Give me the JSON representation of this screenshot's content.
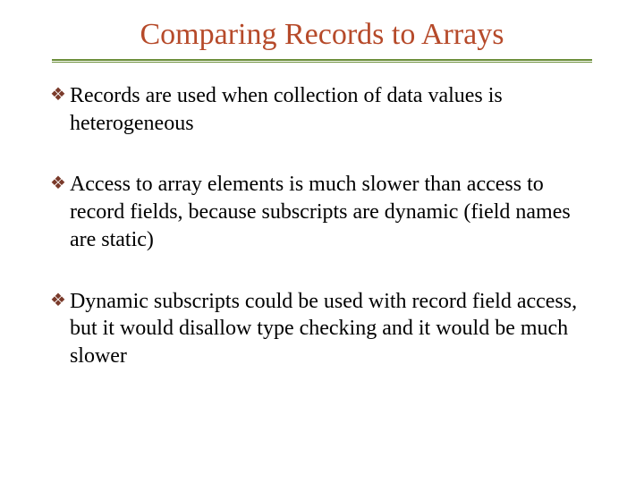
{
  "title": {
    "text": "Comparing Records to Arrays",
    "color": "#b64a2a",
    "fontsize": 34
  },
  "rule": {
    "color": "#6b8e3a"
  },
  "bullet": {
    "glyph": "❖",
    "color": "#7a3a2a"
  },
  "body": {
    "fontsize": 24,
    "color": "#000000"
  },
  "items": [
    {
      "text": "Records are used when collection of data values is heterogeneous"
    },
    {
      "text": "Access to array elements is much slower than access to record fields, because subscripts are dynamic (field names are static)"
    },
    {
      "text": "Dynamic subscripts could be used with record field access, but it would disallow type checking and it would be much slower"
    }
  ]
}
